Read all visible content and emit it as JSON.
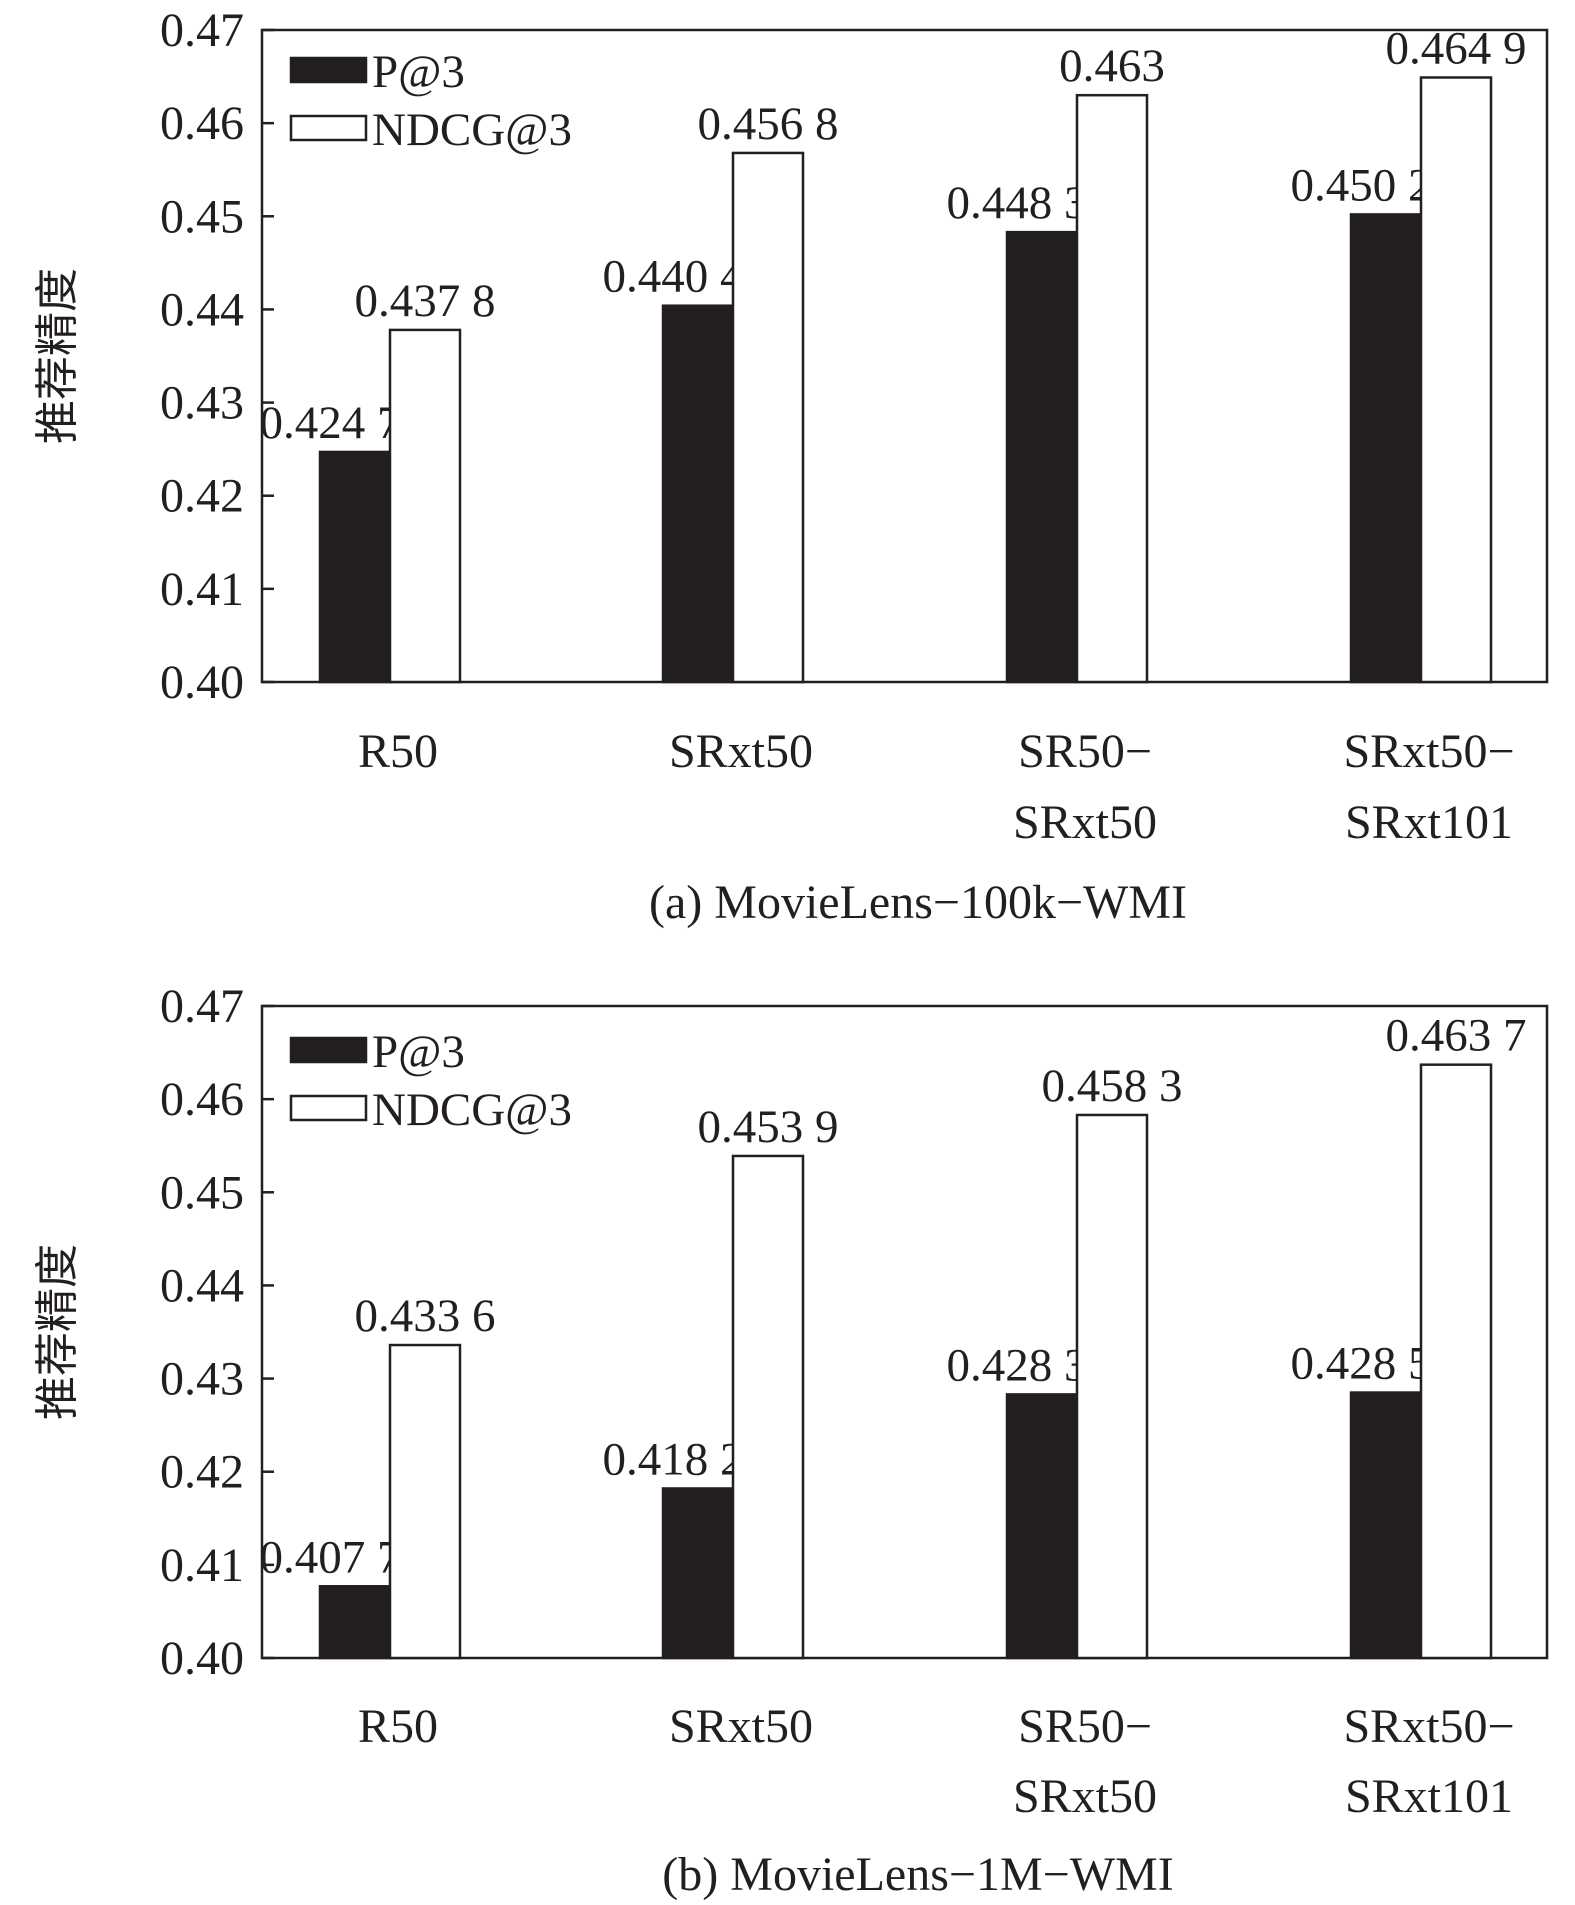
{
  "colors": {
    "p_at_3": "#231f20",
    "ndcg_at_3": "#ffffff",
    "axis": "#231f20"
  },
  "chart_data": [
    {
      "type": "bar",
      "caption": "(a) MovieLens−100k−WMI",
      "ylabel": "推荐精度",
      "ylim": [
        0.4,
        0.47
      ],
      "yticks": [
        "0.40",
        "0.41",
        "0.42",
        "0.43",
        "0.44",
        "0.45",
        "0.46",
        "0.47"
      ],
      "categories": [
        [
          "R50"
        ],
        [
          "SRxt50"
        ],
        [
          "SR50−",
          "SRxt50"
        ],
        [
          "SRxt50−",
          "SRxt101"
        ]
      ],
      "legend_position": "top-left",
      "series": [
        {
          "name": "P@3",
          "values": [
            0.4247,
            0.4404,
            0.4483,
            0.4502
          ],
          "labels": [
            "0.424 7",
            "0.440 4",
            "0.448 3",
            "0.450 2"
          ]
        },
        {
          "name": "NDCG@3",
          "values": [
            0.4378,
            0.4568,
            0.463,
            0.4649
          ],
          "labels": [
            "0.437 8",
            "0.456 8",
            "0.463",
            "0.464 9"
          ]
        }
      ]
    },
    {
      "type": "bar",
      "caption": "(b) MovieLens−1M−WMI",
      "ylabel": "推荐精度",
      "ylim": [
        0.4,
        0.47
      ],
      "yticks": [
        "0.40",
        "0.41",
        "0.42",
        "0.43",
        "0.44",
        "0.45",
        "0.46",
        "0.47"
      ],
      "categories": [
        [
          "R50"
        ],
        [
          "SRxt50"
        ],
        [
          "SR50−",
          "SRxt50"
        ],
        [
          "SRxt50−",
          "SRxt101"
        ]
      ],
      "legend_position": "top-left",
      "series": [
        {
          "name": "P@3",
          "values": [
            0.4077,
            0.4182,
            0.4283,
            0.4285
          ],
          "labels": [
            "0.407 7",
            "0.418 2",
            "0.428 3",
            "0.428 5"
          ]
        },
        {
          "name": "NDCG@3",
          "values": [
            0.4336,
            0.4539,
            0.4583,
            0.4637
          ],
          "labels": [
            "0.433 6",
            "0.453 9",
            "0.458 3",
            "0.463 7"
          ]
        }
      ]
    }
  ]
}
